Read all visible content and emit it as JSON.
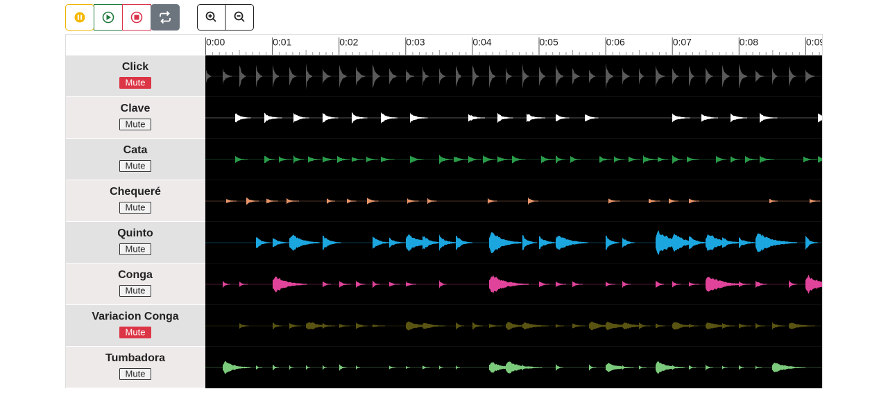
{
  "timeline": {
    "labels": [
      "0:00",
      "0:01",
      "0:02",
      "0:03",
      "0:04",
      "0:05",
      "0:06",
      "0:07",
      "0:08",
      "0:09"
    ]
  },
  "tracks": [
    {
      "name": "Click",
      "mute_label": "Mute",
      "muted": true,
      "color": "#5a5a5a"
    },
    {
      "name": "Clave",
      "mute_label": "Mute",
      "muted": false,
      "color": "#ffffff"
    },
    {
      "name": "Cata",
      "mute_label": "Mute",
      "muted": false,
      "color": "#2a9d4a"
    },
    {
      "name": "Chequeré",
      "mute_label": "Mute",
      "muted": false,
      "color": "#e8956a"
    },
    {
      "name": "Quinto",
      "mute_label": "Mute",
      "muted": false,
      "color": "#1ca6e0"
    },
    {
      "name": "Conga",
      "mute_label": "Mute",
      "muted": false,
      "color": "#e0449a"
    },
    {
      "name": "Variacion Conga",
      "mute_label": "Mute",
      "muted": true,
      "color": "#5a5412"
    },
    {
      "name": "Tumbadora",
      "mute_label": "Mute",
      "muted": false,
      "color": "#7ccb7c"
    }
  ]
}
